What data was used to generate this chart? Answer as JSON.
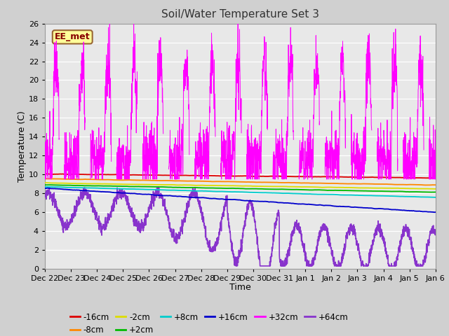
{
  "title": "Soil/Water Temperature Set 3",
  "xlabel": "Time",
  "ylabel": "Temperature (C)",
  "ylim": [
    0,
    26
  ],
  "yticks": [
    0,
    2,
    4,
    6,
    8,
    10,
    12,
    14,
    16,
    18,
    20,
    22,
    24,
    26
  ],
  "fig_bg": "#d0d0d0",
  "ax_bg": "#e8e8e8",
  "annotation_text": "EE_met",
  "annotation_bg": "#ffff99",
  "annotation_border": "#996633",
  "colors": {
    "-16cm": "#dd0000",
    "-8cm": "#ff8800",
    "-2cm": "#dddd00",
    "+2cm": "#00bb00",
    "+8cm": "#00cccc",
    "+16cm": "#0000cc",
    "+32cm": "#ff00ff",
    "+64cm": "#8833cc"
  },
  "xtick_labels": [
    "Dec 22",
    "Dec 23",
    "Dec 24",
    "Dec 25",
    "Dec 26",
    "Dec 27",
    "Dec 28",
    "Dec 29",
    "Dec 30",
    "Dec 31",
    "Jan 1",
    "Jan 2",
    "Jan 3",
    "Jan 4",
    "Jan 5",
    "Jan 6"
  ],
  "n_points": 2160,
  "days": 15
}
